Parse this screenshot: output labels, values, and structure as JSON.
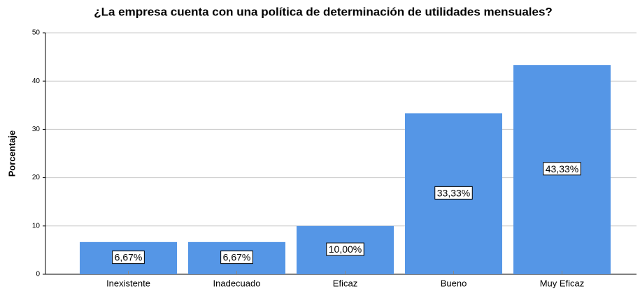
{
  "chart_data": {
    "type": "bar",
    "title": "¿La empresa cuenta con una política de determinación de utilidades mensuales?",
    "y_label": "Porcentaje",
    "categories": [
      "Inexistente",
      "Inadecuado",
      "Eficaz",
      "Bueno",
      "Muy Eficaz"
    ],
    "values": [
      6.67,
      6.67,
      10.0,
      33.33,
      43.33
    ],
    "value_labels": [
      "6,67%",
      "6,67%",
      "10,00%",
      "33,33%",
      "43,33%"
    ],
    "color": "#5596e6",
    "ylim": [
      0,
      50
    ],
    "yticks": [
      0,
      10,
      20,
      30,
      40,
      50
    ],
    "grid": true
  }
}
